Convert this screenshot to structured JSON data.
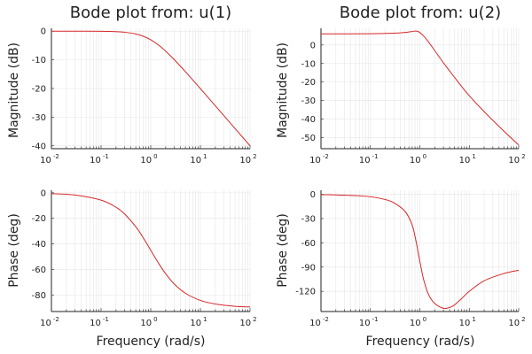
{
  "chart_data": [
    {
      "type": "line",
      "title": "Bode plot from: u(1)",
      "ylabel": "Magnitude (dB)",
      "xlabel": "",
      "xscale": "log",
      "xlim": [
        0.01,
        100
      ],
      "ylim": [
        -41,
        1
      ],
      "yticks": [
        0,
        -10,
        -20,
        -30,
        -40
      ],
      "xtick_base": "10",
      "xtick_exps": [
        "-2",
        "-1",
        "0",
        "1",
        "2"
      ],
      "grid": true,
      "color": "#d62728",
      "x": [
        0.01,
        0.03,
        0.1,
        0.2,
        0.3,
        0.5,
        0.7,
        1,
        1.5,
        2,
        3,
        5,
        10,
        20,
        50,
        100
      ],
      "y": [
        0,
        0,
        -0.04,
        -0.17,
        -0.37,
        -0.97,
        -1.74,
        -3.01,
        -5.11,
        -6.99,
        -10.0,
        -14.15,
        -20.04,
        -26.03,
        -33.98,
        -40.0
      ]
    },
    {
      "type": "line",
      "title": "Bode plot from: u(2)",
      "ylabel": "Magnitude (dB)",
      "xlabel": "",
      "xscale": "log",
      "xlim": [
        0.01,
        100
      ],
      "ylim": [
        -56,
        9
      ],
      "yticks": [
        0,
        -10,
        -20,
        -30,
        -40,
        -50
      ],
      "xtick_base": "10",
      "xtick_exps": [
        "-2",
        "-1",
        "0",
        "1",
        "2"
      ],
      "grid": true,
      "color": "#d62728",
      "x": [
        0.01,
        0.1,
        0.3,
        0.5,
        0.7,
        0.8,
        0.9,
        1,
        1.2,
        1.5,
        2,
        3,
        5,
        7,
        10,
        20,
        50,
        100
      ],
      "y": [
        6.0,
        6.1,
        6.4,
        6.8,
        7.3,
        7.5,
        7.4,
        6.7,
        4.8,
        1.6,
        -3.0,
        -9.6,
        -17.4,
        -22.4,
        -27.4,
        -36.0,
        -46.5,
        -54.0
      ]
    },
    {
      "type": "line",
      "title": "",
      "ylabel": "Phase (deg)",
      "xlabel": "Frequency (rad/s)",
      "xscale": "log",
      "xlim": [
        0.01,
        100
      ],
      "ylim": [
        -93,
        2
      ],
      "yticks": [
        0,
        -20,
        -40,
        -60,
        -80
      ],
      "xtick_base": "10",
      "xtick_exps": [
        "-2",
        "-1",
        "0",
        "1",
        "2"
      ],
      "grid": true,
      "color": "#d62728",
      "x": [
        0.01,
        0.03,
        0.1,
        0.2,
        0.3,
        0.5,
        0.7,
        1,
        1.5,
        2,
        3,
        5,
        10,
        20,
        50,
        100
      ],
      "y": [
        -0.6,
        -1.7,
        -5.7,
        -11.3,
        -16.7,
        -26.6,
        -35.0,
        -45.0,
        -56.3,
        -63.4,
        -71.6,
        -78.7,
        -84.3,
        -87.1,
        -88.9,
        -89.4
      ]
    },
    {
      "type": "line",
      "title": "",
      "ylabel": "Phase (deg)",
      "xlabel": "Frequency (rad/s)",
      "xscale": "log",
      "xlim": [
        0.01,
        100
      ],
      "ylim": [
        -145,
        5
      ],
      "yticks": [
        0,
        -30,
        -60,
        -90,
        -120
      ],
      "xtick_base": "10",
      "xtick_exps": [
        "-2",
        "-1",
        "0",
        "1",
        "2"
      ],
      "grid": true,
      "color": "#d62728",
      "x": [
        0.01,
        0.05,
        0.1,
        0.2,
        0.3,
        0.5,
        0.7,
        0.85,
        1,
        1.2,
        1.5,
        2,
        3,
        4,
        5,
        7,
        10,
        20,
        50,
        100
      ],
      "y": [
        -0.3,
        -1.5,
        -3.0,
        -6.5,
        -10.5,
        -21.0,
        -38.0,
        -60.0,
        -83.0,
        -106.0,
        -124.0,
        -135.0,
        -141.0,
        -140.0,
        -137.0,
        -129.0,
        -120.0,
        -107.0,
        -98.0,
        -94.0
      ]
    }
  ]
}
